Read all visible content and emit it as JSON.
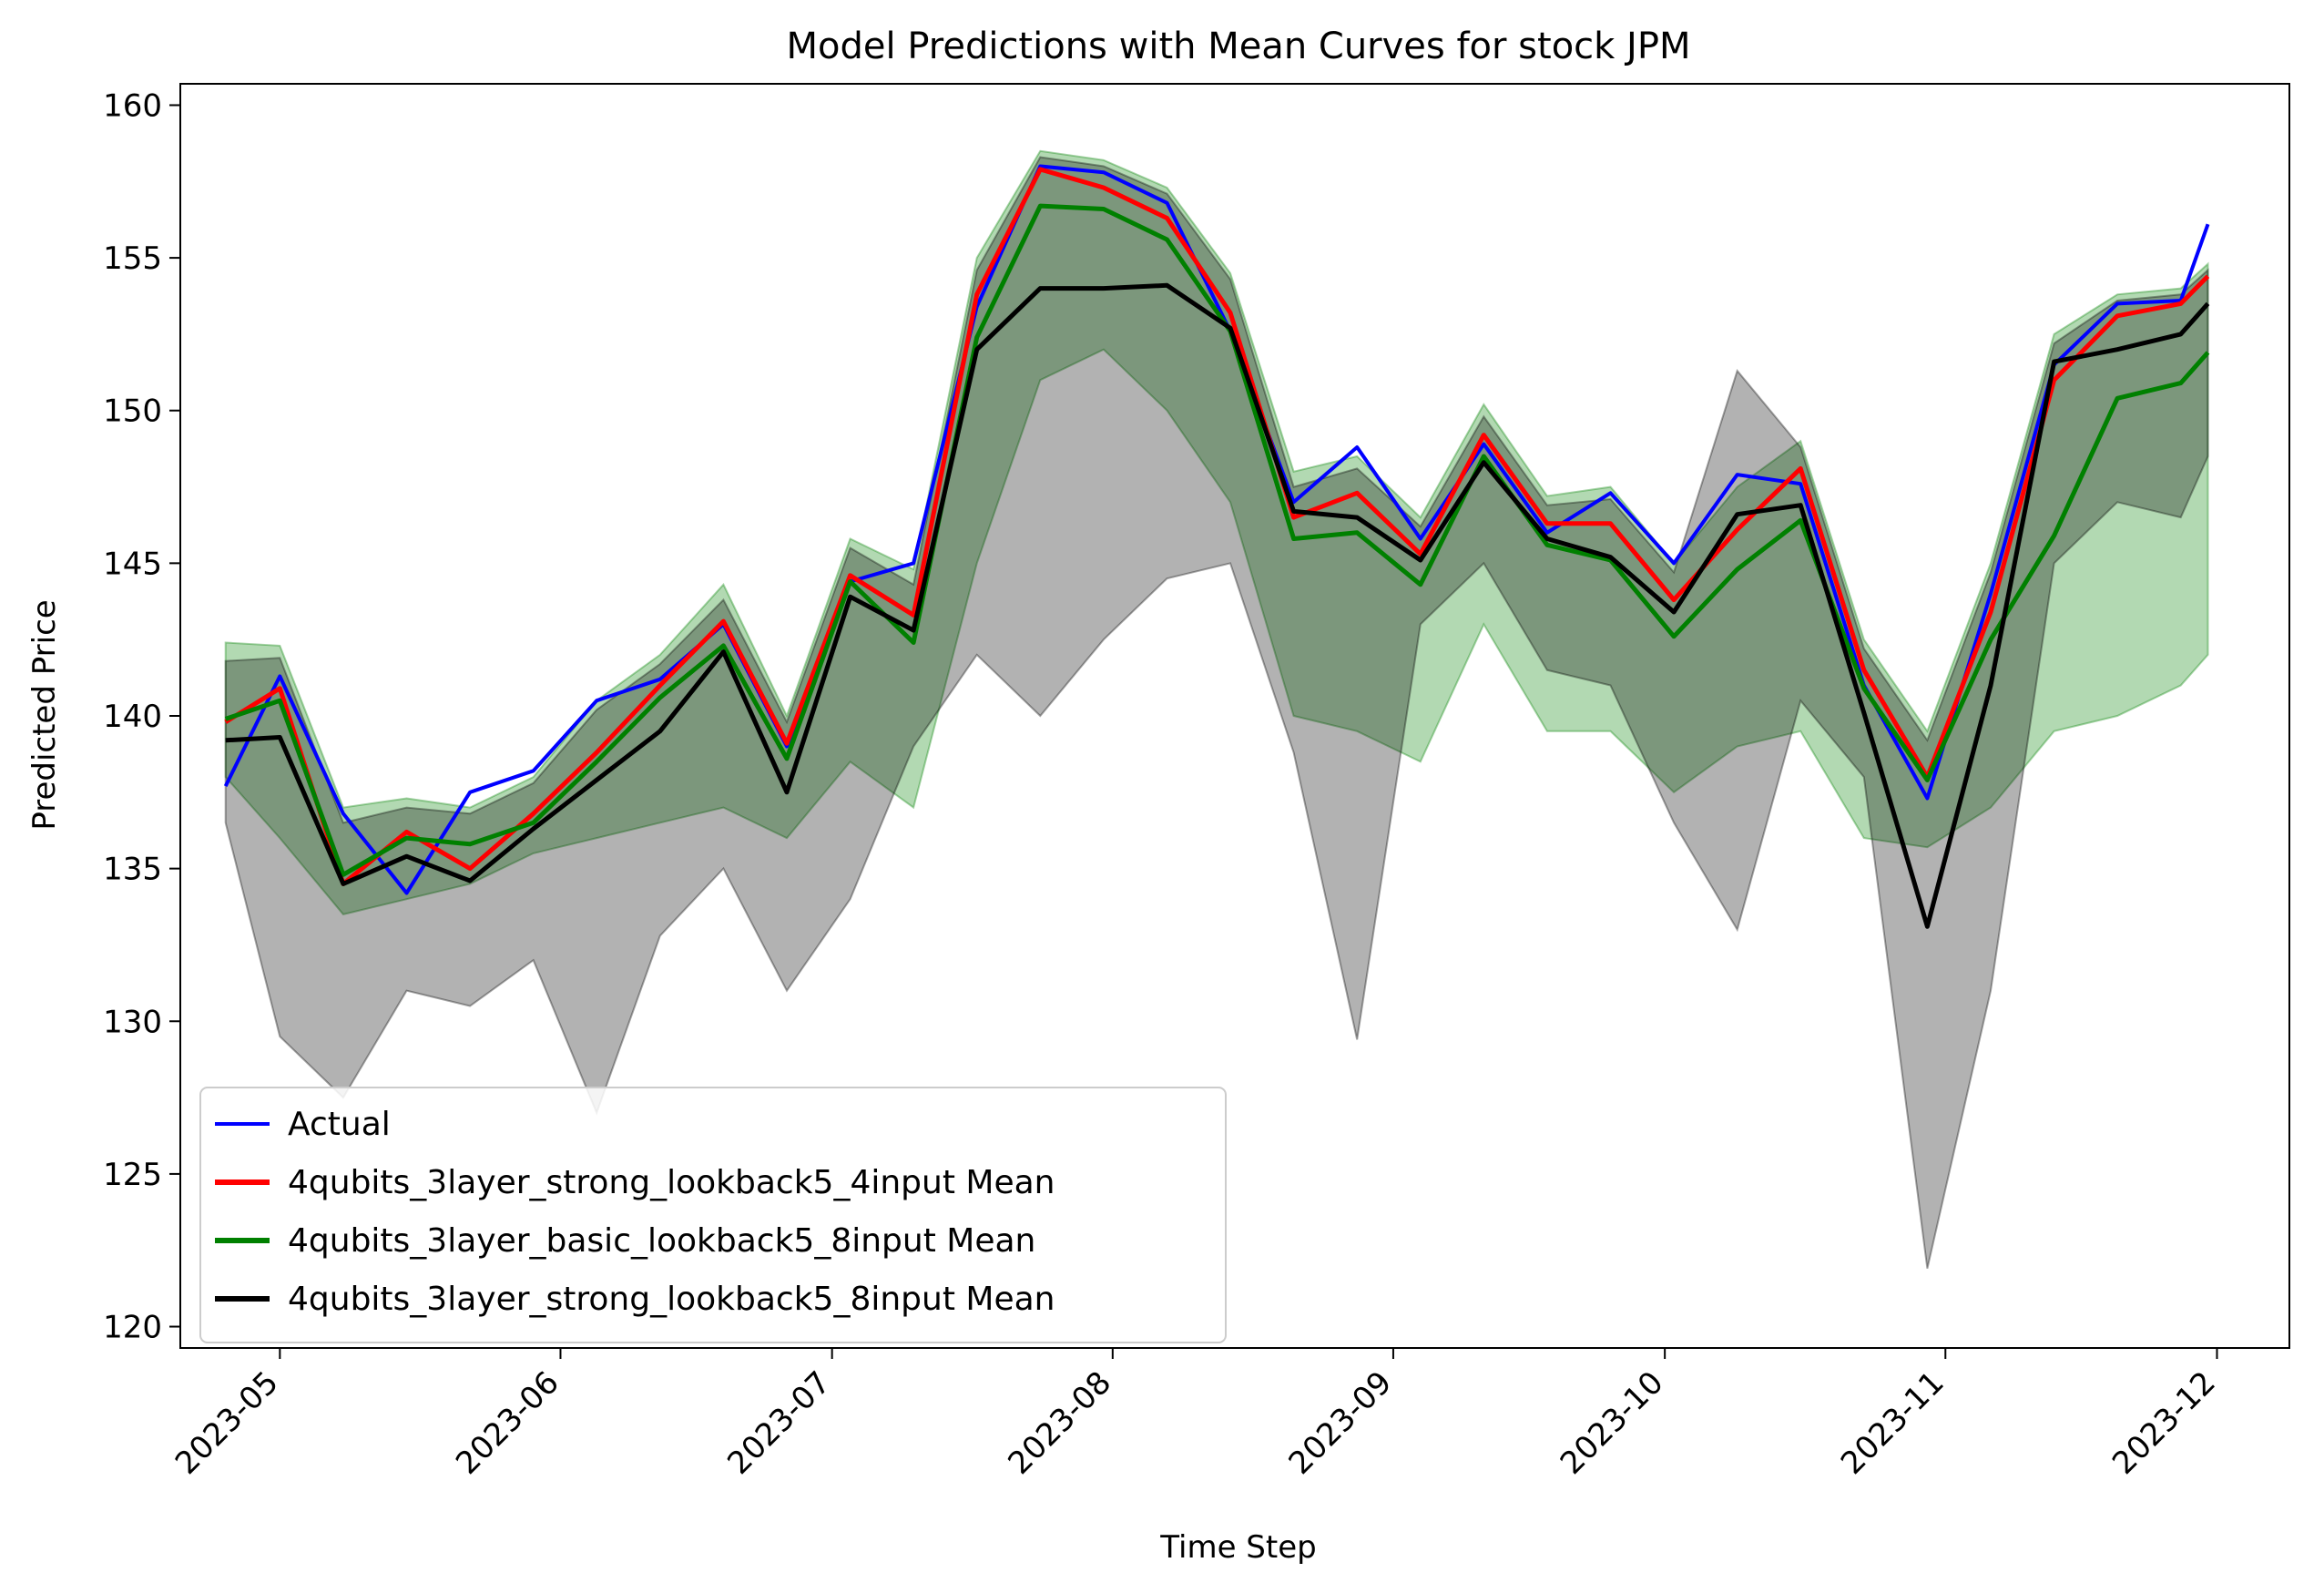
{
  "chart_data": {
    "type": "line",
    "title": "Model Predictions with Mean Curves for stock JPM",
    "xlabel": "Time Step",
    "ylabel": "Predicted Price",
    "ylim": [
      119.3,
      160.7
    ],
    "xlim": [
      "2023-04-20",
      "2023-12-09"
    ],
    "xticks": [
      "2023-05-01",
      "2023-06-01",
      "2023-07-01",
      "2023-08-01",
      "2023-09-01",
      "2023-10-01",
      "2023-11-01",
      "2023-12-01"
    ],
    "xtick_labels": [
      "2023-05",
      "2023-06",
      "2023-07",
      "2023-08",
      "2023-09",
      "2023-10",
      "2023-11",
      "2023-12"
    ],
    "yticks": [
      120,
      125,
      130,
      135,
      140,
      145,
      150,
      155,
      160
    ],
    "grid": false,
    "legend_position": "lower-left",
    "x": [
      "2023-04-25",
      "2023-05-01",
      "2023-05-08",
      "2023-05-15",
      "2023-05-22",
      "2023-05-29",
      "2023-06-05",
      "2023-06-12",
      "2023-06-19",
      "2023-06-26",
      "2023-07-03",
      "2023-07-10",
      "2023-07-17",
      "2023-07-24",
      "2023-07-31",
      "2023-08-07",
      "2023-08-14",
      "2023-08-21",
      "2023-08-28",
      "2023-09-04",
      "2023-09-11",
      "2023-09-18",
      "2023-09-25",
      "2023-10-02",
      "2023-10-09",
      "2023-10-16",
      "2023-10-23",
      "2023-10-30",
      "2023-11-06",
      "2023-11-13",
      "2023-11-20",
      "2023-11-27",
      "2023-11-30"
    ],
    "series": [
      {
        "name": "Actual",
        "color": "#0000ff",
        "values": [
          137.7,
          141.3,
          136.8,
          134.2,
          137.5,
          138.2,
          140.5,
          141.2,
          143.0,
          139.0,
          144.4,
          145.0,
          153.4,
          158.0,
          157.8,
          156.8,
          152.6,
          147.0,
          148.8,
          145.8,
          148.9,
          146.0,
          147.3,
          145.0,
          147.9,
          147.6,
          141.0,
          137.3,
          144.0,
          151.5,
          153.5,
          153.6,
          156.1
        ]
      },
      {
        "name": "4qubits_3layer_strong_lookback5_4input Mean",
        "color": "#ff0000",
        "values": [
          139.8,
          140.9,
          134.5,
          136.2,
          135.0,
          136.8,
          138.8,
          141.0,
          143.1,
          139.1,
          144.6,
          143.3,
          153.8,
          157.9,
          157.3,
          156.3,
          153.2,
          146.5,
          147.3,
          145.3,
          149.2,
          146.3,
          146.3,
          143.8,
          146.1,
          148.1,
          141.5,
          138.0,
          143.4,
          151.0,
          153.1,
          153.5,
          154.4
        ]
      },
      {
        "name": "4qubits_3layer_basic_lookback5_8input Mean",
        "color": "#008000",
        "values": [
          139.9,
          140.5,
          134.8,
          136.0,
          135.8,
          136.5,
          138.5,
          140.6,
          142.3,
          138.6,
          144.4,
          142.4,
          152.4,
          156.7,
          156.6,
          155.6,
          152.6,
          145.8,
          146.0,
          144.3,
          148.5,
          145.6,
          145.1,
          142.6,
          144.8,
          146.4,
          140.9,
          137.9,
          142.5,
          145.9,
          150.4,
          150.9,
          151.9
        ]
      },
      {
        "name": "4qubits_3layer_strong_lookback5_8input Mean",
        "color": "#000000",
        "values": [
          139.2,
          139.3,
          134.5,
          135.4,
          134.6,
          136.3,
          137.9,
          139.5,
          142.1,
          137.5,
          143.9,
          142.8,
          152.0,
          154.0,
          154.0,
          154.1,
          152.7,
          146.7,
          146.5,
          145.1,
          148.3,
          145.8,
          145.2,
          143.4,
          146.6,
          146.9,
          140.1,
          133.1,
          141.0,
          151.6,
          152.0,
          152.5,
          153.5
        ]
      }
    ],
    "bands": [
      {
        "color": "#008000",
        "lower": [
          138.0,
          136.0,
          133.5,
          134.0,
          134.5,
          135.5,
          136.0,
          136.5,
          137.0,
          136.0,
          138.5,
          137.0,
          145.0,
          151.0,
          152.0,
          150.0,
          147.0,
          140.0,
          139.5,
          138.5,
          143.0,
          139.5,
          139.5,
          137.5,
          139.0,
          139.5,
          136.0,
          135.7,
          137.0,
          139.5,
          140.0,
          141.0,
          142.0
        ],
        "upper": [
          142.4,
          142.3,
          137.0,
          137.3,
          137.0,
          138.0,
          140.5,
          142.0,
          144.3,
          140.0,
          145.8,
          144.8,
          155.0,
          158.5,
          158.2,
          157.3,
          154.5,
          148.0,
          148.5,
          146.5,
          150.2,
          147.2,
          147.5,
          145.0,
          147.5,
          149.0,
          142.5,
          139.5,
          145.0,
          152.5,
          153.8,
          154.0,
          154.8
        ]
      },
      {
        "color": "#000000",
        "lower": [
          136.5,
          129.5,
          127.5,
          131.0,
          130.5,
          132.0,
          127.0,
          132.8,
          135.0,
          131.0,
          134.0,
          139.0,
          142.0,
          140.0,
          142.5,
          144.5,
          145.0,
          138.8,
          129.4,
          143.0,
          145.0,
          141.5,
          141.0,
          136.5,
          133.0,
          140.5,
          138.0,
          121.9,
          131.0,
          145.0,
          147.0,
          146.5,
          148.5
        ],
        "upper": [
          141.8,
          141.9,
          136.5,
          137.0,
          136.8,
          137.8,
          140.2,
          141.7,
          143.8,
          139.8,
          145.5,
          144.3,
          154.6,
          158.3,
          158.0,
          157.1,
          154.3,
          147.5,
          148.1,
          146.2,
          149.8,
          146.9,
          147.1,
          144.7,
          151.3,
          148.8,
          142.2,
          139.2,
          144.7,
          152.2,
          153.6,
          153.8,
          154.6
        ]
      }
    ]
  }
}
